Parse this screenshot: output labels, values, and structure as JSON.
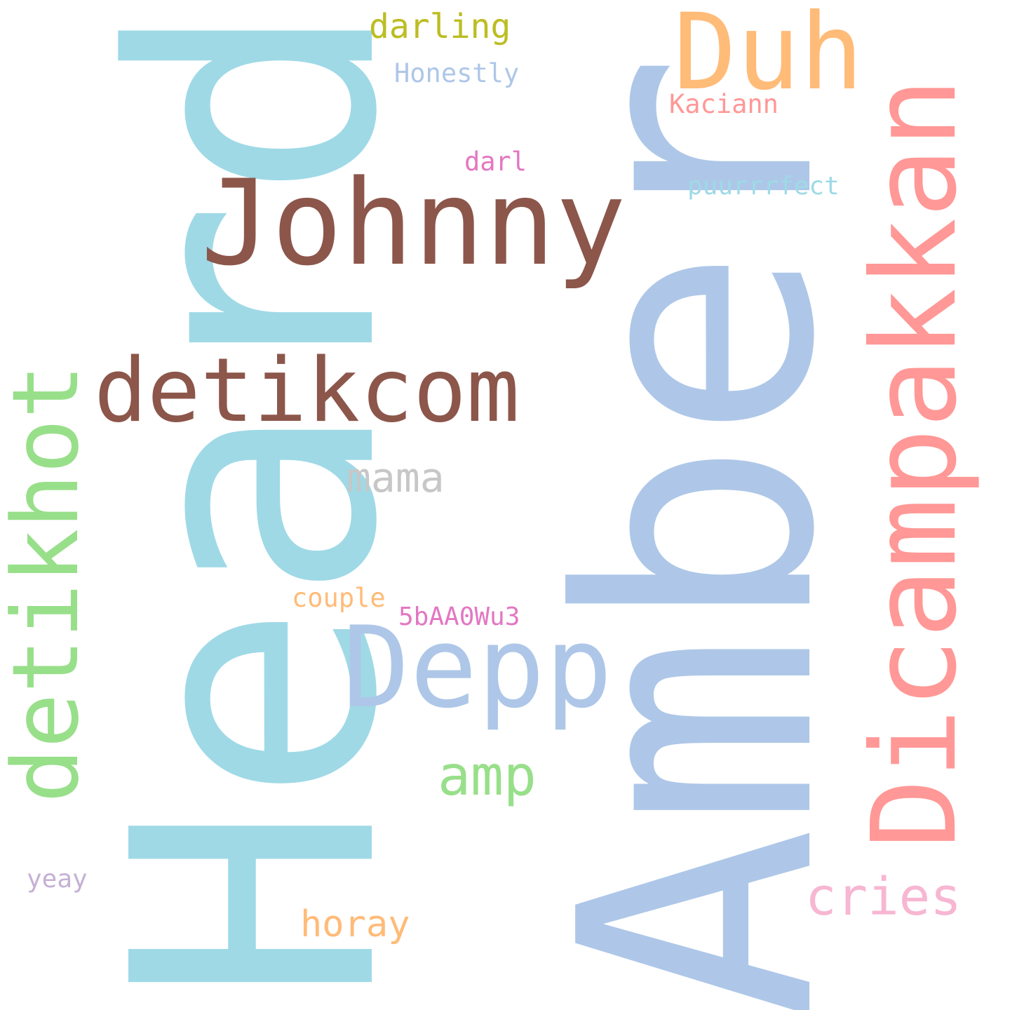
{
  "words": [
    {
      "id": "heard",
      "text": "Heard",
      "color": "#9fd9e6",
      "orientation": "vertical"
    },
    {
      "id": "amber",
      "text": "Amber",
      "color": "#aec7e8",
      "orientation": "vertical"
    },
    {
      "id": "johnny",
      "text": "Johnny",
      "color": "#8c564b",
      "orientation": "horizontal"
    },
    {
      "id": "detikcom",
      "text": "detikcom",
      "color": "#8c564b",
      "orientation": "horizontal"
    },
    {
      "id": "dicampakkan",
      "text": "Dicampakkan",
      "color": "#ff9896",
      "orientation": "vertical"
    },
    {
      "id": "detikhot",
      "text": "detikhot",
      "color": "#98df8a",
      "orientation": "vertical"
    },
    {
      "id": "depp",
      "text": "Depp",
      "color": "#aec7e8",
      "orientation": "horizontal"
    },
    {
      "id": "duh",
      "text": "Duh",
      "color": "#ffbb78",
      "orientation": "horizontal"
    },
    {
      "id": "amp",
      "text": "amp",
      "color": "#98df8a",
      "orientation": "horizontal"
    },
    {
      "id": "cries",
      "text": "cries",
      "color": "#f7b6d2",
      "orientation": "horizontal"
    },
    {
      "id": "mama",
      "text": "mama",
      "color": "#c7c7c7",
      "orientation": "horizontal"
    },
    {
      "id": "darling",
      "text": "darling",
      "color": "#bcbd22",
      "orientation": "horizontal"
    },
    {
      "id": "horay",
      "text": "horay",
      "color": "#ffbb78",
      "orientation": "horizontal"
    },
    {
      "id": "honestly",
      "text": "Honestly",
      "color": "#aec7e8",
      "orientation": "horizontal"
    },
    {
      "id": "kaciann",
      "text": "Kaciann",
      "color": "#ff9896",
      "orientation": "horizontal"
    },
    {
      "id": "darl",
      "text": "darl",
      "color": "#e377c2",
      "orientation": "horizontal"
    },
    {
      "id": "puurrrfect",
      "text": "puurrrfect",
      "color": "#9edae5",
      "orientation": "horizontal"
    },
    {
      "id": "couple",
      "text": "couple",
      "color": "#ffbb78",
      "orientation": "horizontal"
    },
    {
      "id": "code",
      "text": "5bAA0Wu3",
      "color": "#e377c2",
      "orientation": "horizontal"
    },
    {
      "id": "yeay",
      "text": "yeay",
      "color": "#c5b0d5",
      "orientation": "horizontal"
    }
  ]
}
